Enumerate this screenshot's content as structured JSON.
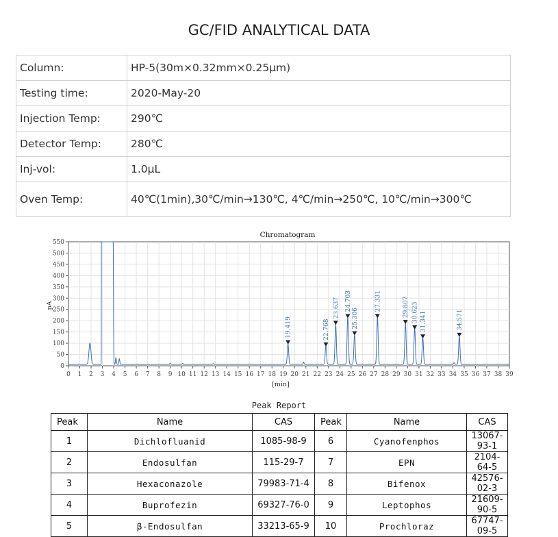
{
  "title": "GC/FID ANALYTICAL DATA",
  "params": [
    {
      "label": "Column:",
      "value": "HP-5(30m×0.32mm×0.25μm)"
    },
    {
      "label": "Testing time:",
      "value": "2020-May-20"
    },
    {
      "label": "Injection Temp:",
      "value": "290℃"
    },
    {
      "label": "Detector Temp:",
      "value": "280℃"
    },
    {
      "label": "Inj-vol:",
      "value": "1.0μL"
    },
    {
      "label": "Oven Temp:",
      "value": "40℃(1min),30℃/min→130℃, 4℃/min→250℃, 10℃/min→300℃"
    }
  ],
  "chart_data": {
    "type": "line",
    "title": "Chromatogram",
    "xlabel": "[min]",
    "ylabel": "pA",
    "xlim": [
      0,
      39
    ],
    "ylim": [
      0,
      550
    ],
    "x_ticks": [
      0,
      1,
      2,
      3,
      4,
      5,
      6,
      7,
      8,
      9,
      10,
      11,
      12,
      13,
      14,
      15,
      16,
      17,
      18,
      19,
      20,
      21,
      22,
      23,
      24,
      25,
      26,
      27,
      28,
      29,
      30,
      31,
      32,
      33,
      34,
      35,
      36,
      37,
      38,
      39
    ],
    "y_ticks": [
      0,
      50,
      100,
      150,
      200,
      250,
      300,
      350,
      400,
      450,
      500,
      550
    ],
    "grid": true,
    "color": "#3f6fb5",
    "solvent": [
      {
        "rt": 1.9,
        "height": 95
      },
      {
        "rt": 2.95,
        "height": 550
      },
      {
        "rt": 3.95,
        "height": 550
      }
    ],
    "minor_peaks": [
      {
        "rt": 4.2,
        "height": 30
      },
      {
        "rt": 4.5,
        "height": 25
      },
      {
        "rt": 9.0,
        "height": 6
      },
      {
        "rt": 10.1,
        "height": 5
      },
      {
        "rt": 12.8,
        "height": 4
      },
      {
        "rt": 20.8,
        "height": 10
      },
      {
        "rt": 34.1,
        "height": 8
      }
    ],
    "peaks": [
      {
        "rt": 19.419,
        "label": "19.419",
        "height": 92
      },
      {
        "rt": 22.768,
        "label": "22.768",
        "height": 82
      },
      {
        "rt": 23.637,
        "label": "23.637",
        "height": 178
      },
      {
        "rt": 24.703,
        "label": "24.703",
        "height": 208
      },
      {
        "rt": 25.306,
        "label": "25.306",
        "height": 132
      },
      {
        "rt": 27.331,
        "label": "27.331",
        "height": 208
      },
      {
        "rt": 29.807,
        "label": "29.807",
        "height": 182
      },
      {
        "rt": 30.623,
        "label": "30.623",
        "height": 158
      },
      {
        "rt": 31.341,
        "label": "31.341",
        "height": 118
      },
      {
        "rt": 34.571,
        "label": "34.571",
        "height": 125
      }
    ]
  },
  "report": {
    "title": "Peak Report",
    "headers": [
      "Peak",
      "Name",
      "CAS",
      "Peak",
      "Name",
      "CAS"
    ],
    "rows": [
      [
        "1",
        "Dichlofluanid",
        "1085-98-9",
        "6",
        "Cyanofenphos",
        "13067-93-1"
      ],
      [
        "2",
        "Endosulfan",
        "115-29-7",
        "7",
        "EPN",
        "2104-64-5"
      ],
      [
        "3",
        "Hexaconazole",
        "79983-71-4",
        "8",
        "Bifenox",
        "42576-02-3"
      ],
      [
        "4",
        "Buprofezin",
        "69327-76-0",
        "9",
        "Leptophos",
        "21609-90-5"
      ],
      [
        "5",
        "β-Endosulfan",
        "33213-65-9",
        "10",
        "Prochloraz",
        "67747-09-5"
      ]
    ]
  }
}
